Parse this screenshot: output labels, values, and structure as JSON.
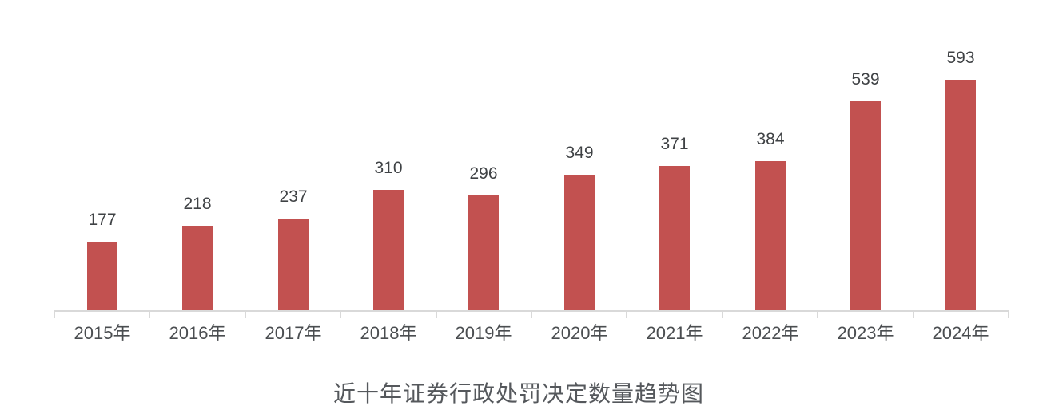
{
  "chart_data": {
    "type": "bar",
    "title": "近十年证券行政处罚决定数量趋势图",
    "categories": [
      "2015年",
      "2016年",
      "2017年",
      "2018年",
      "2019年",
      "2020年",
      "2021年",
      "2022年",
      "2023年",
      "2024年"
    ],
    "values": [
      177,
      218,
      237,
      310,
      296,
      349,
      371,
      384,
      539,
      593
    ],
    "xlabel": "",
    "ylabel": "",
    "ylim": [
      0,
      650
    ],
    "grid": false,
    "legend": false,
    "data_labels": true,
    "colors": {
      "bar": "#c25150",
      "axis": "#d9d9d9",
      "value_label": "#3f4245",
      "year_label": "#4a4d50",
      "title": "#55585c",
      "background": "#ffffff"
    }
  }
}
